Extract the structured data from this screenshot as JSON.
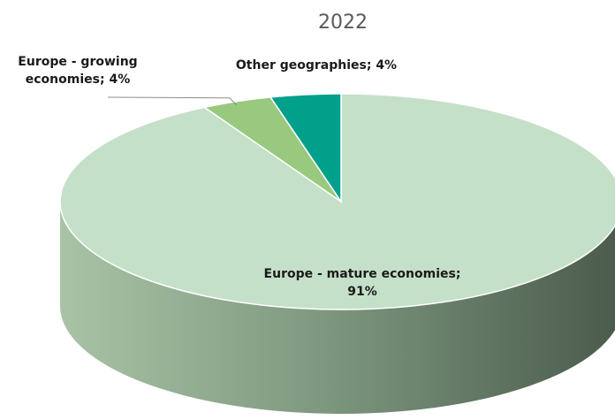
{
  "chart_data": {
    "type": "pie",
    "title": "2022",
    "labels": [
      "Europe - mature economies",
      "Europe - growing economies",
      "Other geographies"
    ],
    "values": [
      91,
      4,
      4
    ],
    "data_labels": [
      [
        "Europe - mature economies;",
        "91%"
      ],
      [
        "Europe - growing",
        "economies; 4%"
      ],
      [
        "Other geographies; 4%"
      ]
    ],
    "colors": [
      "#c5e0c8",
      "#99c97f",
      "#00a08a"
    ],
    "side_colors": [
      "#8aa88b",
      "#6f9a58",
      "#007a69"
    ]
  }
}
